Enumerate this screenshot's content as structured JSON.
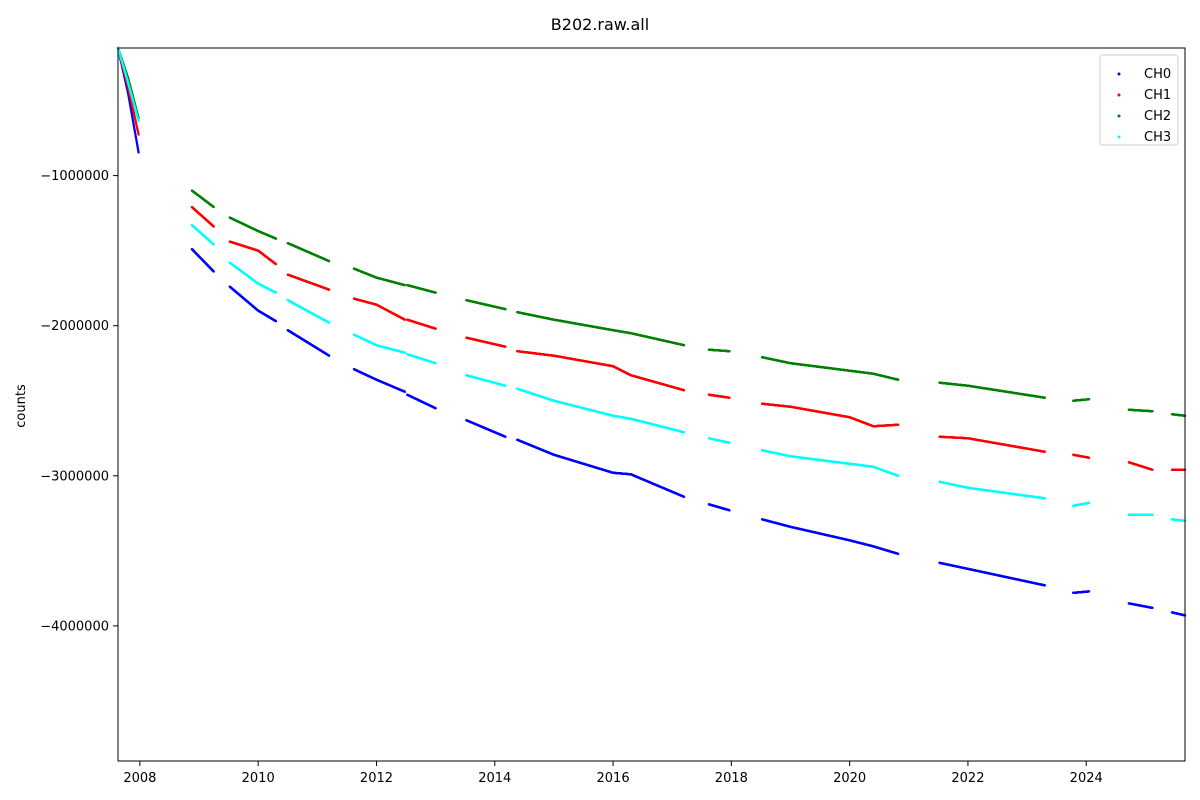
{
  "chart_data": {
    "type": "scatter",
    "title": "B202.raw.all",
    "xlabel": "",
    "ylabel": "counts",
    "xlim": [
      2007.63,
      2025.67
    ],
    "ylim": [
      -4900000,
      -150000
    ],
    "x_ticks": [
      2008,
      2010,
      2012,
      2014,
      2016,
      2018,
      2020,
      2022,
      2024
    ],
    "x_tick_labels": [
      "2008",
      "2010",
      "2012",
      "2014",
      "2016",
      "2018",
      "2020",
      "2022",
      "2024"
    ],
    "y_ticks": [
      -1000000,
      -2000000,
      -3000000,
      -4000000
    ],
    "y_tick_labels": [
      "−1000000",
      "−2000000",
      "−3000000",
      "−4000000"
    ],
    "grid": false,
    "legend_position": "top-right",
    "segments": [
      [
        2007.63,
        2007.98
      ],
      [
        2008.88,
        2009.25
      ],
      [
        2009.52,
        2010.3
      ],
      [
        2010.5,
        2011.2
      ],
      [
        2011.62,
        2012.48
      ],
      [
        2012.52,
        2013.0
      ],
      [
        2013.52,
        2014.18
      ],
      [
        2014.38,
        2016.3
      ],
      [
        2016.3,
        2017.2
      ],
      [
        2017.62,
        2017.97
      ],
      [
        2018.52,
        2020.4
      ],
      [
        2020.4,
        2020.82
      ],
      [
        2021.52,
        2023.3
      ],
      [
        2023.78,
        2024.05
      ],
      [
        2024.72,
        2025.12
      ],
      [
        2025.45,
        2025.67
      ]
    ],
    "series": [
      {
        "name": "CH0",
        "color": "#0000ff",
        "points": [
          [
            2007.63,
            -150000
          ],
          [
            2007.8,
            -450000
          ],
          [
            2007.98,
            -850000
          ],
          [
            2008.88,
            -1490000
          ],
          [
            2009.25,
            -1640000
          ],
          [
            2009.52,
            -1740000
          ],
          [
            2010.0,
            -1900000
          ],
          [
            2010.3,
            -1970000
          ],
          [
            2010.5,
            -2030000
          ],
          [
            2011.2,
            -2200000
          ],
          [
            2011.62,
            -2290000
          ],
          [
            2012.0,
            -2360000
          ],
          [
            2012.48,
            -2440000
          ],
          [
            2012.52,
            -2460000
          ],
          [
            2013.0,
            -2550000
          ],
          [
            2013.52,
            -2630000
          ],
          [
            2014.18,
            -2740000
          ],
          [
            2014.38,
            -2760000
          ],
          [
            2015.0,
            -2860000
          ],
          [
            2016.0,
            -2980000
          ],
          [
            2016.3,
            -2990000
          ],
          [
            2017.2,
            -3140000
          ],
          [
            2017.62,
            -3190000
          ],
          [
            2017.97,
            -3230000
          ],
          [
            2018.52,
            -3290000
          ],
          [
            2019.0,
            -3340000
          ],
          [
            2020.0,
            -3430000
          ],
          [
            2020.4,
            -3470000
          ],
          [
            2020.82,
            -3520000
          ],
          [
            2021.52,
            -3580000
          ],
          [
            2022.0,
            -3620000
          ],
          [
            2023.3,
            -3730000
          ],
          [
            2023.78,
            -3780000
          ],
          [
            2024.05,
            -3770000
          ],
          [
            2024.72,
            -3850000
          ],
          [
            2025.12,
            -3880000
          ],
          [
            2025.45,
            -3910000
          ],
          [
            2025.67,
            -3930000
          ]
        ]
      },
      {
        "name": "CH1",
        "color": "#ff0000",
        "points": [
          [
            2007.63,
            -150000
          ],
          [
            2007.8,
            -410000
          ],
          [
            2007.98,
            -730000
          ],
          [
            2008.88,
            -1210000
          ],
          [
            2009.25,
            -1340000
          ],
          [
            2009.52,
            -1440000
          ],
          [
            2010.0,
            -1500000
          ],
          [
            2010.3,
            -1590000
          ],
          [
            2010.5,
            -1660000
          ],
          [
            2011.2,
            -1760000
          ],
          [
            2011.62,
            -1820000
          ],
          [
            2012.0,
            -1860000
          ],
          [
            2012.48,
            -1960000
          ],
          [
            2012.52,
            -1960000
          ],
          [
            2013.0,
            -2020000
          ],
          [
            2013.52,
            -2080000
          ],
          [
            2014.18,
            -2140000
          ],
          [
            2014.38,
            -2170000
          ],
          [
            2015.0,
            -2200000
          ],
          [
            2016.0,
            -2270000
          ],
          [
            2016.3,
            -2330000
          ],
          [
            2017.2,
            -2430000
          ],
          [
            2017.62,
            -2460000
          ],
          [
            2017.97,
            -2480000
          ],
          [
            2018.52,
            -2520000
          ],
          [
            2019.0,
            -2540000
          ],
          [
            2020.0,
            -2610000
          ],
          [
            2020.4,
            -2670000
          ],
          [
            2020.82,
            -2660000
          ],
          [
            2021.52,
            -2740000
          ],
          [
            2022.0,
            -2750000
          ],
          [
            2023.3,
            -2840000
          ],
          [
            2023.78,
            -2860000
          ],
          [
            2024.05,
            -2880000
          ],
          [
            2024.72,
            -2910000
          ],
          [
            2025.12,
            -2960000
          ],
          [
            2025.45,
            -2960000
          ],
          [
            2025.67,
            -2960000
          ]
        ]
      },
      {
        "name": "CH2",
        "color": "#008000",
        "points": [
          [
            2007.63,
            -150000
          ],
          [
            2007.8,
            -350000
          ],
          [
            2007.98,
            -620000
          ],
          [
            2008.88,
            -1100000
          ],
          [
            2009.25,
            -1210000
          ],
          [
            2009.52,
            -1280000
          ],
          [
            2010.0,
            -1370000
          ],
          [
            2010.3,
            -1420000
          ],
          [
            2010.5,
            -1450000
          ],
          [
            2011.2,
            -1570000
          ],
          [
            2011.62,
            -1620000
          ],
          [
            2012.0,
            -1680000
          ],
          [
            2012.48,
            -1730000
          ],
          [
            2012.52,
            -1730000
          ],
          [
            2013.0,
            -1780000
          ],
          [
            2013.52,
            -1830000
          ],
          [
            2014.18,
            -1890000
          ],
          [
            2014.38,
            -1910000
          ],
          [
            2015.0,
            -1960000
          ],
          [
            2016.0,
            -2030000
          ],
          [
            2016.3,
            -2050000
          ],
          [
            2017.2,
            -2130000
          ],
          [
            2017.62,
            -2160000
          ],
          [
            2017.97,
            -2170000
          ],
          [
            2018.52,
            -2210000
          ],
          [
            2019.0,
            -2250000
          ],
          [
            2020.0,
            -2300000
          ],
          [
            2020.4,
            -2320000
          ],
          [
            2020.82,
            -2360000
          ],
          [
            2021.52,
            -2380000
          ],
          [
            2022.0,
            -2400000
          ],
          [
            2023.3,
            -2480000
          ],
          [
            2023.78,
            -2500000
          ],
          [
            2024.05,
            -2490000
          ],
          [
            2024.72,
            -2560000
          ],
          [
            2025.12,
            -2570000
          ],
          [
            2025.45,
            -2590000
          ],
          [
            2025.67,
            -2600000
          ]
        ]
      },
      {
        "name": "CH3",
        "color": "#00ffff",
        "points": [
          [
            2007.63,
            -150000
          ],
          [
            2007.8,
            -380000
          ],
          [
            2007.98,
            -640000
          ],
          [
            2008.88,
            -1330000
          ],
          [
            2009.25,
            -1460000
          ],
          [
            2009.52,
            -1580000
          ],
          [
            2010.0,
            -1720000
          ],
          [
            2010.3,
            -1780000
          ],
          [
            2010.5,
            -1830000
          ],
          [
            2011.2,
            -1980000
          ],
          [
            2011.62,
            -2060000
          ],
          [
            2012.0,
            -2130000
          ],
          [
            2012.48,
            -2180000
          ],
          [
            2012.52,
            -2190000
          ],
          [
            2013.0,
            -2250000
          ],
          [
            2013.52,
            -2330000
          ],
          [
            2014.18,
            -2400000
          ],
          [
            2014.38,
            -2420000
          ],
          [
            2015.0,
            -2500000
          ],
          [
            2016.0,
            -2600000
          ],
          [
            2016.3,
            -2620000
          ],
          [
            2017.2,
            -2710000
          ],
          [
            2017.62,
            -2750000
          ],
          [
            2017.97,
            -2780000
          ],
          [
            2018.52,
            -2830000
          ],
          [
            2019.0,
            -2870000
          ],
          [
            2020.0,
            -2920000
          ],
          [
            2020.4,
            -2940000
          ],
          [
            2020.82,
            -3000000
          ],
          [
            2021.52,
            -3040000
          ],
          [
            2022.0,
            -3080000
          ],
          [
            2023.3,
            -3150000
          ],
          [
            2023.78,
            -3200000
          ],
          [
            2024.05,
            -3180000
          ],
          [
            2024.72,
            -3260000
          ],
          [
            2025.12,
            -3260000
          ],
          [
            2025.45,
            -3290000
          ],
          [
            2025.67,
            -3300000
          ]
        ]
      }
    ]
  }
}
